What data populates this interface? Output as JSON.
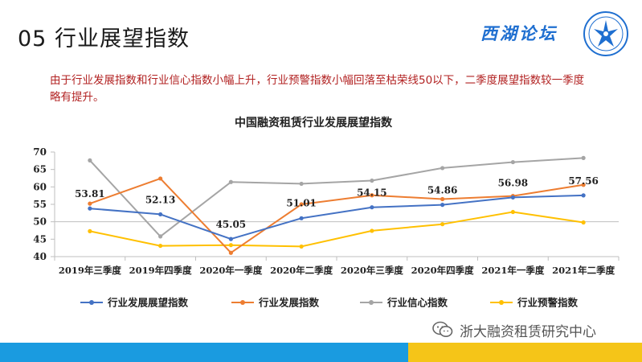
{
  "slide": {
    "title": "05 行业展望指数",
    "brand": "西湖论坛",
    "summary": "由于行业发展指数和行业信心指数小幅上升，行业预警指数小幅回落至枯荣线50以下，二季度展望指数较一季度略有提升。",
    "watermark": "浙大融资租赁研究中心",
    "logo_icon": "west-lake-forum-emblem-icon",
    "watermark_icon": "wechat-icon",
    "colors": {
      "blue_band": "#1a9be0",
      "yellow_band": "#f5c518",
      "summary_text": "#b22222",
      "brand": "#1f6fd0"
    }
  },
  "chart_data": {
    "type": "line",
    "title": "中国融资租赁行业发展展望指数",
    "categories": [
      "2019年三季度",
      "2019年四季度",
      "2020年一季度",
      "2020年二季度",
      "2020年三季度",
      "2020年四季度",
      "2021年一季度",
      "2021年二季度"
    ],
    "ylim": [
      40,
      70
    ],
    "yticks": [
      40,
      45,
      50,
      55,
      60,
      65,
      70
    ],
    "grid": false,
    "reference_line": 50,
    "legend_position": "bottom",
    "series": [
      {
        "name": "行业发展展望指数",
        "color": "#4472c4",
        "values": [
          53.81,
          52.13,
          45.05,
          51.01,
          54.15,
          54.86,
          56.98,
          57.56
        ],
        "labels": [
          "53.81",
          "52.13",
          "45.05",
          "51.01",
          "54.15",
          "54.86",
          "56.98",
          "57.56"
        ]
      },
      {
        "name": "行业发展指数",
        "color": "#ed7d31",
        "values": [
          55.2,
          62.4,
          41.1,
          55.0,
          57.6,
          56.5,
          57.4,
          60.6
        ]
      },
      {
        "name": "行业信心指数",
        "color": "#a5a5a5",
        "values": [
          67.6,
          45.8,
          61.4,
          60.9,
          61.8,
          65.4,
          67.1,
          68.3
        ]
      },
      {
        "name": "行业预警指数",
        "color": "#ffc000",
        "values": [
          47.3,
          43.1,
          43.3,
          42.9,
          47.4,
          49.3,
          52.8,
          49.8
        ]
      }
    ]
  }
}
